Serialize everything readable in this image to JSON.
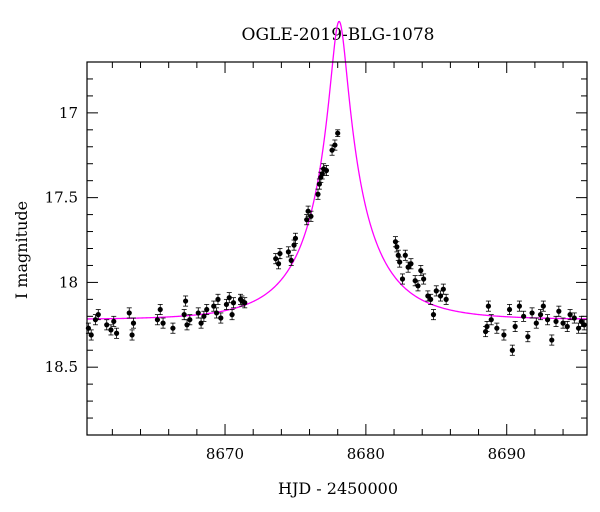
{
  "chart_data": {
    "type": "scatter",
    "title": "OGLE-2019-BLG-1078",
    "xlabel": "HJD - 2450000",
    "ylabel": "I magnitude",
    "xlim": [
      8660.2,
      8695.7
    ],
    "ylim": [
      18.9,
      16.7
    ],
    "y_inverted": true,
    "x_ticks": [
      8670,
      8680,
      8690
    ],
    "y_ticks": [
      17,
      17.5,
      18,
      18.5
    ],
    "colors": {
      "points": "#000000",
      "model": "#ff00ff",
      "frame": "#000000"
    },
    "model": {
      "t0": 8678.1,
      "u0": 0.12,
      "tE": 4.7,
      "baseline_mag": 18.22,
      "blending": 0.45
    },
    "points": [
      [
        8660.3,
        18.27,
        0.03
      ],
      [
        8660.5,
        18.31,
        0.03
      ],
      [
        8660.8,
        18.22,
        0.03
      ],
      [
        8661.0,
        18.19,
        0.03
      ],
      [
        8661.6,
        18.25,
        0.03
      ],
      [
        8661.9,
        18.28,
        0.03
      ],
      [
        8662.1,
        18.23,
        0.03
      ],
      [
        8662.3,
        18.3,
        0.03
      ],
      [
        8663.2,
        18.18,
        0.03
      ],
      [
        8663.4,
        18.31,
        0.03
      ],
      [
        8663.5,
        18.24,
        0.03
      ],
      [
        8665.2,
        18.22,
        0.03
      ],
      [
        8665.4,
        18.16,
        0.03
      ],
      [
        8665.6,
        18.24,
        0.03
      ],
      [
        8666.3,
        18.27,
        0.03
      ],
      [
        8667.1,
        18.19,
        0.03
      ],
      [
        8667.2,
        18.11,
        0.03
      ],
      [
        8667.3,
        18.25,
        0.03
      ],
      [
        8667.5,
        18.22,
        0.03
      ],
      [
        8668.1,
        18.18,
        0.03
      ],
      [
        8668.3,
        18.24,
        0.03
      ],
      [
        8668.5,
        18.2,
        0.03
      ],
      [
        8668.7,
        18.16,
        0.03
      ],
      [
        8669.2,
        18.14,
        0.03
      ],
      [
        8669.4,
        18.18,
        0.03
      ],
      [
        8669.5,
        18.1,
        0.03
      ],
      [
        8669.7,
        18.21,
        0.03
      ],
      [
        8670.1,
        18.13,
        0.03
      ],
      [
        8670.3,
        18.09,
        0.03
      ],
      [
        8670.5,
        18.19,
        0.03
      ],
      [
        8670.6,
        18.12,
        0.03
      ],
      [
        8671.1,
        18.1,
        0.03
      ],
      [
        8671.2,
        18.11,
        0.03
      ],
      [
        8671.4,
        18.12,
        0.03
      ],
      [
        8673.6,
        17.86,
        0.03
      ],
      [
        8673.8,
        17.89,
        0.03
      ],
      [
        8673.9,
        17.83,
        0.03
      ],
      [
        8674.5,
        17.82,
        0.03
      ],
      [
        8674.7,
        17.87,
        0.03
      ],
      [
        8674.9,
        17.78,
        0.03
      ],
      [
        8675.0,
        17.74,
        0.03
      ],
      [
        8675.8,
        17.63,
        0.03
      ],
      [
        8675.9,
        17.58,
        0.03
      ],
      [
        8676.1,
        17.61,
        0.03
      ],
      [
        8676.6,
        17.48,
        0.03
      ],
      [
        8676.7,
        17.42,
        0.03
      ],
      [
        8676.8,
        17.38,
        0.03
      ],
      [
        8676.9,
        17.36,
        0.03
      ],
      [
        8677.0,
        17.33,
        0.03
      ],
      [
        8677.2,
        17.34,
        0.03
      ],
      [
        8677.6,
        17.22,
        0.03
      ],
      [
        8677.8,
        17.19,
        0.03
      ],
      [
        8678.0,
        17.12,
        0.02
      ],
      [
        8682.1,
        17.76,
        0.03
      ],
      [
        8682.2,
        17.79,
        0.03
      ],
      [
        8682.3,
        17.84,
        0.03
      ],
      [
        8682.4,
        17.88,
        0.03
      ],
      [
        8682.6,
        17.98,
        0.03
      ],
      [
        8682.8,
        17.84,
        0.03
      ],
      [
        8683.0,
        17.91,
        0.03
      ],
      [
        8683.2,
        17.89,
        0.03
      ],
      [
        8683.5,
        17.99,
        0.03
      ],
      [
        8683.7,
        18.02,
        0.03
      ],
      [
        8683.9,
        17.93,
        0.03
      ],
      [
        8684.1,
        17.98,
        0.03
      ],
      [
        8684.4,
        18.08,
        0.03
      ],
      [
        8684.6,
        18.1,
        0.03
      ],
      [
        8684.8,
        18.19,
        0.03
      ],
      [
        8685.0,
        18.05,
        0.03
      ],
      [
        8685.3,
        18.08,
        0.03
      ],
      [
        8685.5,
        18.04,
        0.03
      ],
      [
        8685.7,
        18.1,
        0.03
      ],
      [
        8688.5,
        18.29,
        0.03
      ],
      [
        8688.6,
        18.26,
        0.03
      ],
      [
        8688.7,
        18.14,
        0.03
      ],
      [
        8688.9,
        18.22,
        0.03
      ],
      [
        8689.3,
        18.27,
        0.03
      ],
      [
        8689.8,
        18.31,
        0.03
      ],
      [
        8690.2,
        18.16,
        0.03
      ],
      [
        8690.4,
        18.4,
        0.03
      ],
      [
        8690.6,
        18.26,
        0.03
      ],
      [
        8690.9,
        18.14,
        0.03
      ],
      [
        8691.2,
        18.2,
        0.03
      ],
      [
        8691.5,
        18.32,
        0.03
      ],
      [
        8691.8,
        18.18,
        0.03
      ],
      [
        8692.1,
        18.24,
        0.03
      ],
      [
        8692.4,
        18.19,
        0.03
      ],
      [
        8692.6,
        18.14,
        0.03
      ],
      [
        8692.9,
        18.22,
        0.03
      ],
      [
        8693.2,
        18.34,
        0.03
      ],
      [
        8693.5,
        18.23,
        0.03
      ],
      [
        8693.7,
        18.17,
        0.03
      ],
      [
        8694.0,
        18.24,
        0.03
      ],
      [
        8694.3,
        18.26,
        0.03
      ],
      [
        8694.5,
        18.19,
        0.03
      ],
      [
        8694.8,
        18.21,
        0.03
      ],
      [
        8695.1,
        18.27,
        0.03
      ],
      [
        8695.3,
        18.23,
        0.03
      ],
      [
        8695.5,
        18.25,
        0.03
      ]
    ]
  }
}
